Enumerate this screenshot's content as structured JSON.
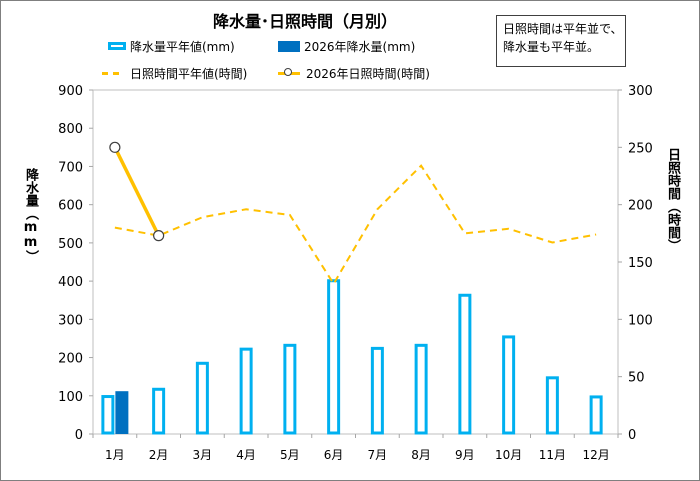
{
  "chart_data": {
    "type": "bar",
    "title": "降水量･日照時間（月別）",
    "categories": [
      "1月",
      "2月",
      "3月",
      "4月",
      "5月",
      "6月",
      "7月",
      "8月",
      "9月",
      "10月",
      "11月",
      "12月"
    ],
    "series": [
      {
        "name": "降水量平年値(mm)",
        "type": "bar",
        "axis": "left",
        "style": "outline",
        "values": [
          98,
          117,
          185,
          222,
          232,
          401,
          224,
          232,
          363,
          254,
          147,
          97
        ]
      },
      {
        "name": "2026年降水量(mm)",
        "type": "bar",
        "axis": "left",
        "style": "filled",
        "values": [
          112,
          null,
          null,
          null,
          null,
          null,
          null,
          null,
          null,
          null,
          null,
          null
        ],
        "plotted_at_category": 2
      },
      {
        "name": "日照時間平年値(時間)",
        "type": "line",
        "axis": "right",
        "style": "dashed",
        "values": [
          180,
          173,
          189,
          196,
          191,
          131,
          196,
          234,
          175,
          179,
          167,
          174
        ]
      },
      {
        "name": "2026年日照時間(時間)",
        "type": "line",
        "axis": "right",
        "style": "solid-marker",
        "values": [
          250,
          173,
          null,
          null,
          null,
          null,
          null,
          null,
          null,
          null,
          null,
          null
        ]
      }
    ],
    "ylabel": "降水量（mm）",
    "y2label": "日照時間（時間）",
    "ylim": [
      0,
      900
    ],
    "y2lim": [
      0,
      300
    ],
    "yticks": [
      "0",
      "100",
      "200",
      "300",
      "400",
      "500",
      "600",
      "700",
      "800",
      "900"
    ],
    "y2ticks": [
      "0",
      "50",
      "100",
      "150",
      "200",
      "250",
      "300"
    ],
    "grid": false,
    "legend": "top",
    "colors": {
      "normal_precip": "#00b0f0",
      "precip_2026": "#0070c0",
      "sunshine": "#ffc000",
      "marker_edge": "#404040",
      "axis": "#a6a6a6"
    }
  },
  "note": {
    "line1": "日照時間は平年並で、",
    "line2": "降水量も平年並。"
  },
  "legend": {
    "normal_precip": "降水量平年値(mm)",
    "precip_2026": "2026年降水量(mm)",
    "normal_sun": "日照時間平年値(時間)",
    "sun_2026": "2026年日照時間(時間)"
  },
  "axis_titles": {
    "left": "降水量（mm）",
    "right": "日照時間（時間）"
  }
}
